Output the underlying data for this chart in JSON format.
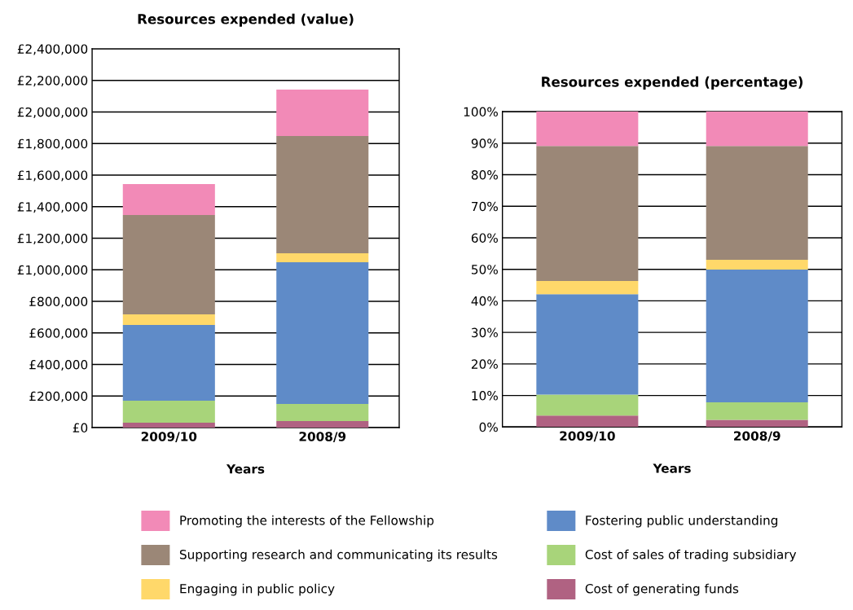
{
  "chart_data": [
    {
      "type": "bar",
      "stacked": true,
      "title": "Resources expended (value)",
      "xlabel": "Years",
      "categories": [
        "2009/10",
        "2008/9"
      ],
      "ylim": [
        0,
        2400000
      ],
      "yticks": [
        {
          "value": 0,
          "label": "£0"
        },
        {
          "value": 200000,
          "label": "£200,000"
        },
        {
          "value": 400000,
          "label": "£400,000"
        },
        {
          "value": 600000,
          "label": "£600,000"
        },
        {
          "value": 800000,
          "label": "£800,000"
        },
        {
          "value": 1000000,
          "label": "£1,000,000"
        },
        {
          "value": 1200000,
          "label": "£1,200,000"
        },
        {
          "value": 1400000,
          "label": "£1,400,000"
        },
        {
          "value": 1600000,
          "label": "£1,600,000"
        },
        {
          "value": 1800000,
          "label": "£1,800,000"
        },
        {
          "value": 2000000,
          "label": "£2,000,000"
        },
        {
          "value": 2200000,
          "label": "£2,200,000"
        },
        {
          "value": 2400000,
          "label": "£2,400,000"
        }
      ],
      "grid": "y",
      "legend": "bottom",
      "series": [
        {
          "name": "Cost of generating funds",
          "color": "#b06282",
          "values": [
            31000,
            41000
          ]
        },
        {
          "name": "Cost of sales of trading subsidiary",
          "color": "#a8d47a",
          "values": [
            139000,
            109000
          ]
        },
        {
          "name": "Fostering public understanding",
          "color": "#5f8bc8",
          "values": [
            480000,
            898000
          ]
        },
        {
          "name": "Engaging in public policy",
          "color": "#ffd86a",
          "values": [
            67000,
            57000
          ]
        },
        {
          "name": "Supporting research and communicating its results",
          "color": "#9b8777",
          "values": [
            630000,
            743000
          ]
        },
        {
          "name": "Promoting the interests of the Fellowship",
          "color": "#f28ab7",
          "values": [
            196000,
            294000
          ]
        }
      ]
    },
    {
      "type": "bar",
      "stacked": true,
      "title": "Resources expended (percentage)",
      "xlabel": "Years",
      "categories": [
        "2009/10",
        "2008/9"
      ],
      "ylim": [
        0,
        100
      ],
      "yticks": [
        {
          "value": 0,
          "label": "0%"
        },
        {
          "value": 10,
          "label": "10%"
        },
        {
          "value": 20,
          "label": "20%"
        },
        {
          "value": 30,
          "label": "30%"
        },
        {
          "value": 40,
          "label": "40%"
        },
        {
          "value": 50,
          "label": "50%"
        },
        {
          "value": 60,
          "label": "60%"
        },
        {
          "value": 70,
          "label": "70%"
        },
        {
          "value": 80,
          "label": "80%"
        },
        {
          "value": 90,
          "label": "90%"
        },
        {
          "value": 100,
          "label": "100%"
        }
      ],
      "grid": "y",
      "series": [
        {
          "color": "#b06282",
          "values": [
            3.6,
            2.3
          ]
        },
        {
          "color": "#a8d47a",
          "values": [
            6.7,
            5.5
          ]
        },
        {
          "color": "#5f8bc8",
          "values": [
            31.8,
            42.1
          ]
        },
        {
          "color": "#ffd86a",
          "values": [
            4.2,
            3.1
          ]
        },
        {
          "color": "#9b8777",
          "values": [
            42.8,
            36.1
          ]
        },
        {
          "color": "#f28ab7",
          "values": [
            10.9,
            10.9
          ]
        }
      ]
    }
  ]
}
